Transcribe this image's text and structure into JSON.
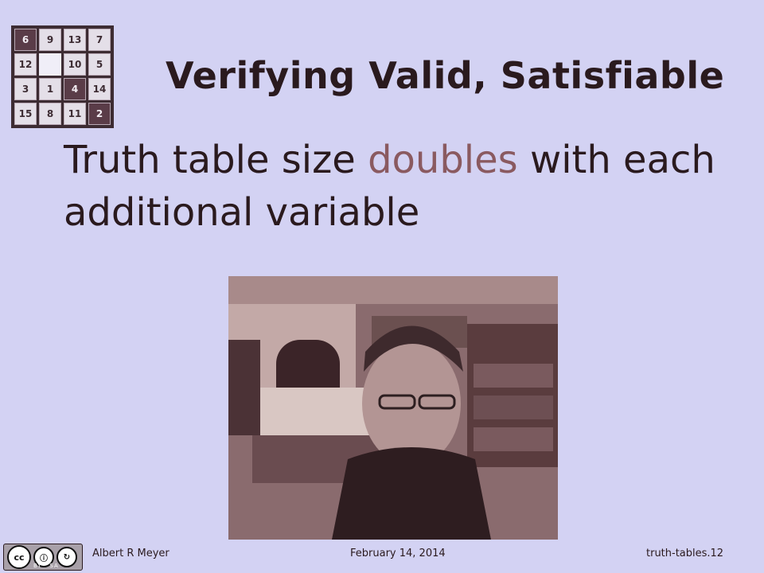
{
  "slide": {
    "title": "Verifying Valid, Satisfiable",
    "body_part1": "Truth table size ",
    "body_highlight": "doubles",
    "body_part2": " with each additional variable"
  },
  "puzzle_tiles": [
    "6",
    "9",
    "13",
    "7",
    "12",
    "",
    "10",
    "5",
    "3",
    "1",
    "4",
    "14",
    "15",
    "8",
    "11",
    "2"
  ],
  "footer": {
    "author": "Albert R Meyer",
    "date": "February 14, 2014",
    "slide_id": "truth-tables.12",
    "license_by": "BY",
    "license_sa": "SA"
  },
  "colors": {
    "background": "#d3d2f3",
    "highlight": "#8a5a60",
    "text": "#2a1a1e"
  }
}
